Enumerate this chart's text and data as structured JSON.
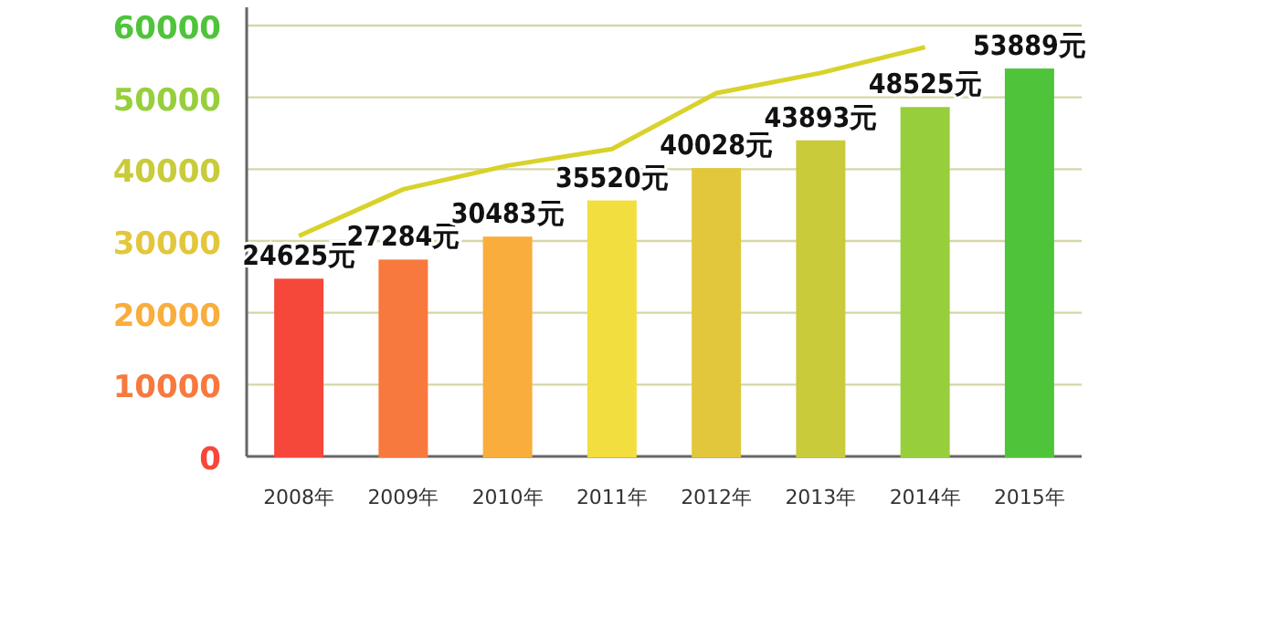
{
  "chart_data": {
    "type": "bar",
    "categories": [
      "2008年",
      "2009年",
      "2010年",
      "2011年",
      "2012年",
      "2013年",
      "2014年",
      "2015年"
    ],
    "ylim": [
      0,
      60000
    ],
    "yticks": [
      0,
      10000,
      20000,
      30000,
      40000,
      50000,
      60000
    ],
    "grid": "y",
    "series": [
      {
        "colors": [
          "#f5473a",
          "#f7793e",
          "#f9ad3c",
          "#f2de3e",
          "#e2c73c",
          "#c9cb3a",
          "#97cf3c",
          "#4fc43a"
        ],
        "values": [
          24625,
          27284,
          30483,
          35520,
          40028,
          43893,
          48525,
          53889
        ],
        "value_labels": [
          "24625元",
          "27284元",
          "30483元",
          "35520元",
          "40028元",
          "43893元",
          "48525元",
          "53889元"
        ]
      },
      {
        "type": "line",
        "color": "#d8d22a",
        "values": [
          30700,
          37200,
          40500,
          42800,
          50600,
          53400,
          57000,
          null
        ]
      }
    ]
  }
}
